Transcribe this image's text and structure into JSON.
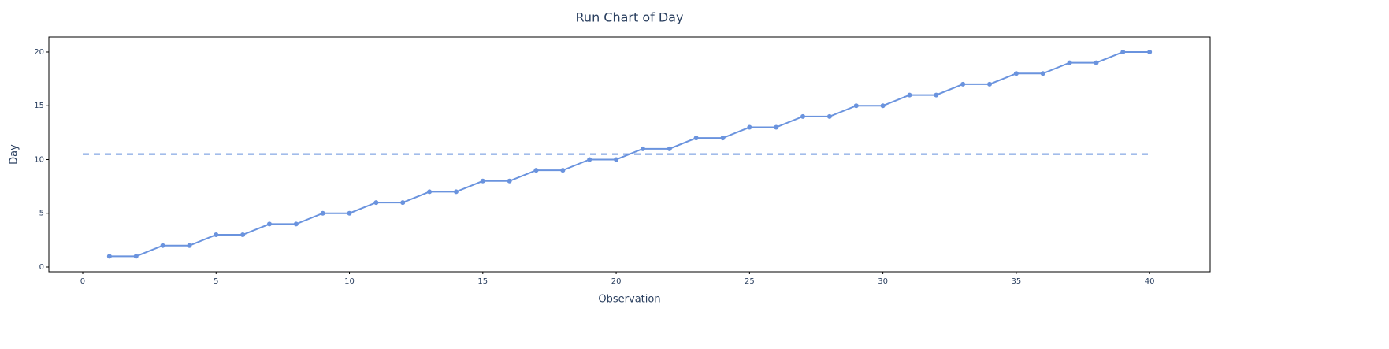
{
  "chart_data": {
    "type": "line",
    "title": "Run Chart of Day",
    "x_label": "Observation",
    "y_label": "Day",
    "x": [
      1,
      2,
      3,
      4,
      5,
      6,
      7,
      8,
      9,
      10,
      11,
      12,
      13,
      14,
      15,
      16,
      17,
      18,
      19,
      20,
      21,
      22,
      23,
      24,
      25,
      26,
      27,
      28,
      29,
      30,
      31,
      32,
      33,
      34,
      35,
      36,
      37,
      38,
      39,
      40
    ],
    "series": [
      {
        "color": "#6a93de",
        "values": [
          1,
          1,
          2,
          2,
          3,
          3,
          4,
          4,
          5,
          5,
          6,
          6,
          7,
          7,
          8,
          8,
          9,
          9,
          10,
          10,
          11,
          11,
          12,
          12,
          13,
          13,
          14,
          14,
          15,
          15,
          16,
          16,
          17,
          17,
          18,
          18,
          19,
          19,
          20,
          20
        ]
      }
    ],
    "center_line": {
      "x": [
        0,
        40
      ],
      "y": [
        10.5,
        10.5
      ]
    },
    "xlim": [
      -1.27,
      42.27
    ],
    "ylim": [
      -0.44,
      21.39
    ],
    "xticks": [
      0,
      5,
      10,
      15,
      20,
      25,
      30,
      35,
      40
    ],
    "yticks": [
      0,
      5,
      10,
      15,
      20
    ]
  }
}
